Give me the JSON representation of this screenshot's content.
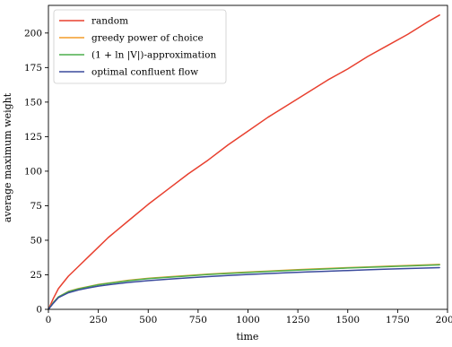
{
  "chart_data": {
    "type": "line",
    "title": "",
    "xlabel": "time",
    "ylabel": "average maximum weight",
    "xlim": [
      0,
      2000
    ],
    "ylim": [
      0,
      220
    ],
    "xticks": [
      0,
      250,
      500,
      750,
      1000,
      1250,
      1500,
      1750,
      2000
    ],
    "yticks": [
      0,
      25,
      50,
      75,
      100,
      125,
      150,
      175,
      200
    ],
    "xtick_labels": [
      "0",
      "250",
      "500",
      "750",
      "1000",
      "1250",
      "1500",
      "1750",
      "2000"
    ],
    "ytick_labels": [
      "0",
      "25",
      "50",
      "75",
      "100",
      "125",
      "150",
      "175",
      "200"
    ],
    "grid": false,
    "legend_position": "top-left",
    "series": [
      {
        "name": "random",
        "color": "#e8402f",
        "x": [
          0,
          25,
          50,
          100,
          150,
          200,
          250,
          300,
          400,
          500,
          600,
          700,
          800,
          900,
          1000,
          1100,
          1200,
          1300,
          1400,
          1500,
          1600,
          1700,
          1800,
          1900,
          1960
        ],
        "y": [
          0,
          8,
          15,
          24,
          31,
          38,
          45,
          52,
          64,
          76,
          87,
          98,
          108,
          119,
          129,
          139,
          148,
          157,
          166,
          174,
          183,
          191,
          199,
          208,
          213
        ]
      },
      {
        "name": "greedy power of choice",
        "color": "#f39c28",
        "x": [
          0,
          25,
          50,
          100,
          150,
          200,
          250,
          300,
          400,
          500,
          600,
          700,
          800,
          900,
          1000,
          1100,
          1200,
          1300,
          1400,
          1500,
          1600,
          1700,
          1800,
          1900,
          1960
        ],
        "y": [
          0,
          5,
          9,
          13,
          15,
          16.5,
          18,
          19,
          21,
          22.5,
          23.5,
          24.5,
          25.5,
          26.3,
          27,
          27.7,
          28.4,
          29,
          29.6,
          30.2,
          30.7,
          31.2,
          31.7,
          32.2,
          32.5
        ]
      },
      {
        "name": "(1 + ln |V|)-approximation",
        "color": "#4cae4c",
        "x": [
          0,
          25,
          50,
          100,
          150,
          200,
          250,
          300,
          400,
          500,
          600,
          700,
          800,
          900,
          1000,
          1100,
          1200,
          1300,
          1400,
          1500,
          1600,
          1700,
          1800,
          1900,
          1960
        ],
        "y": [
          0,
          5,
          9,
          12.8,
          14.8,
          16.3,
          17.8,
          18.8,
          20.7,
          22.2,
          23.2,
          24.2,
          25.2,
          26,
          26.7,
          27.4,
          28.1,
          28.7,
          29.3,
          29.9,
          30.4,
          30.9,
          31.4,
          31.9,
          32.2
        ]
      },
      {
        "name": "optimal confluent flow",
        "color": "#3a4a9c",
        "x": [
          0,
          25,
          50,
          100,
          150,
          200,
          250,
          300,
          400,
          500,
          600,
          700,
          800,
          900,
          1000,
          1100,
          1200,
          1300,
          1400,
          1500,
          1600,
          1700,
          1800,
          1900,
          1960
        ],
        "y": [
          0,
          4.5,
          8.5,
          12,
          14,
          15.5,
          16.8,
          17.8,
          19.5,
          20.8,
          21.8,
          22.8,
          23.7,
          24.5,
          25.2,
          25.9,
          26.5,
          27.1,
          27.6,
          28.1,
          28.6,
          29.1,
          29.5,
          29.9,
          30.2
        ]
      }
    ]
  }
}
